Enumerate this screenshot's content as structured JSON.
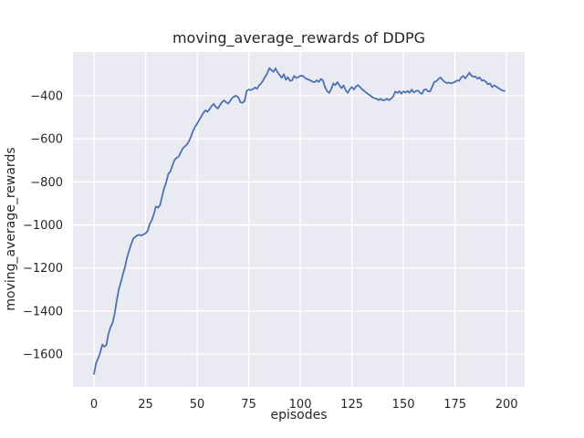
{
  "colors": {
    "figure_bg": "#ffffff",
    "axes_bg": "#eaeaf2",
    "grid": "#ffffff",
    "line": "#4c72b0",
    "text": "#262626"
  },
  "chart_data": {
    "type": "line",
    "title": "moving_average_rewards of DDPG",
    "xlabel": "episodes",
    "ylabel": "moving_average_rewards",
    "x_ticks": [
      0,
      25,
      50,
      75,
      100,
      125,
      150,
      175,
      200
    ],
    "y_ticks": [
      -400,
      -600,
      -800,
      -1000,
      -1200,
      -1400,
      -1600
    ],
    "xlim": [
      -10.2,
      208.8
    ],
    "ylim": [
      -1753,
      -196
    ],
    "grid": true,
    "legend": false,
    "series": [
      {
        "name": "moving_average_rewards",
        "color": "#4c72b0",
        "x": [
          0,
          1,
          2,
          3,
          4,
          5,
          6,
          7,
          8,
          9,
          10,
          11,
          12,
          13,
          14,
          15,
          16,
          17,
          18,
          19,
          20,
          21,
          22,
          23,
          24,
          25,
          26,
          27,
          28,
          29,
          30,
          31,
          32,
          33,
          34,
          35,
          36,
          37,
          38,
          39,
          40,
          41,
          42,
          43,
          44,
          45,
          46,
          47,
          48,
          49,
          50,
          51,
          52,
          53,
          54,
          55,
          56,
          57,
          58,
          59,
          60,
          61,
          62,
          63,
          64,
          65,
          66,
          67,
          68,
          69,
          70,
          71,
          72,
          73,
          74,
          75,
          76,
          77,
          78,
          79,
          80,
          81,
          82,
          83,
          84,
          85,
          86,
          87,
          88,
          89,
          90,
          91,
          92,
          93,
          94,
          95,
          96,
          97,
          98,
          99,
          100,
          101,
          102,
          103,
          104,
          105,
          106,
          107,
          108,
          109,
          110,
          111,
          112,
          113,
          114,
          115,
          116,
          117,
          118,
          119,
          120,
          121,
          122,
          123,
          124,
          125,
          126,
          127,
          128,
          129,
          130,
          131,
          132,
          133,
          134,
          135,
          136,
          137,
          138,
          139,
          140,
          141,
          142,
          143,
          144,
          145,
          146,
          147,
          148,
          149,
          150,
          151,
          152,
          153,
          154,
          155,
          156,
          157,
          158,
          159,
          160,
          161,
          162,
          163,
          164,
          165,
          166,
          167,
          168,
          169,
          170,
          171,
          172,
          173,
          174,
          175,
          176,
          177,
          178,
          179,
          180,
          181,
          182,
          183,
          184,
          185,
          186,
          187,
          188,
          189,
          190,
          191,
          192,
          193,
          194,
          195,
          196,
          197,
          198,
          199
        ],
        "y": [
          -1693,
          -1642,
          -1620,
          -1594,
          -1556,
          -1566,
          -1558,
          -1505,
          -1475,
          -1455,
          -1412,
          -1352,
          -1300,
          -1266,
          -1230,
          -1196,
          -1152,
          -1120,
          -1090,
          -1064,
          -1055,
          -1048,
          -1046,
          -1049,
          -1044,
          -1039,
          -1028,
          -996,
          -978,
          -950,
          -914,
          -920,
          -908,
          -868,
          -829,
          -802,
          -763,
          -752,
          -724,
          -698,
          -688,
          -683,
          -663,
          -644,
          -635,
          -627,
          -611,
          -589,
          -563,
          -544,
          -529,
          -512,
          -496,
          -479,
          -467,
          -474,
          -462,
          -448,
          -437,
          -451,
          -459,
          -444,
          -429,
          -421,
          -429,
          -436,
          -424,
          -409,
          -402,
          -400,
          -407,
          -430,
          -432,
          -424,
          -377,
          -371,
          -373,
          -369,
          -361,
          -367,
          -351,
          -342,
          -328,
          -311,
          -295,
          -271,
          -280,
          -288,
          -272,
          -291,
          -303,
          -316,
          -299,
          -325,
          -313,
          -330,
          -328,
          -307,
          -317,
          -313,
          -307,
          -306,
          -314,
          -321,
          -324,
          -329,
          -334,
          -336,
          -328,
          -335,
          -321,
          -329,
          -359,
          -378,
          -386,
          -369,
          -342,
          -350,
          -336,
          -351,
          -364,
          -351,
          -374,
          -386,
          -369,
          -359,
          -371,
          -356,
          -350,
          -359,
          -370,
          -377,
          -385,
          -392,
          -399,
          -406,
          -412,
          -413,
          -420,
          -413,
          -421,
          -419,
          -413,
          -420,
          -413,
          -404,
          -380,
          -386,
          -378,
          -390,
          -379,
          -385,
          -377,
          -386,
          -371,
          -384,
          -378,
          -375,
          -385,
          -391,
          -371,
          -370,
          -379,
          -379,
          -356,
          -335,
          -332,
          -321,
          -314,
          -326,
          -335,
          -340,
          -338,
          -342,
          -339,
          -335,
          -328,
          -330,
          -315,
          -307,
          -319,
          -306,
          -292,
          -306,
          -311,
          -310,
          -320,
          -314,
          -329,
          -327,
          -335,
          -346,
          -342,
          -359,
          -351,
          -357,
          -363,
          -370,
          -375,
          -377
        ]
      }
    ]
  }
}
